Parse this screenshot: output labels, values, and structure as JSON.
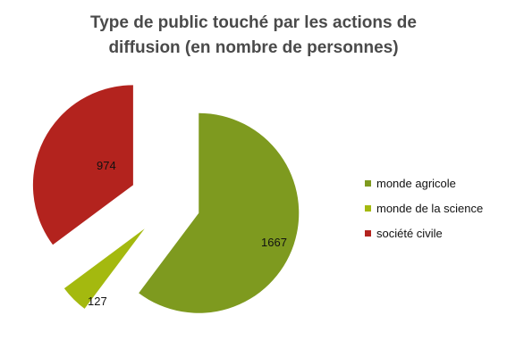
{
  "chart_data": {
    "type": "pie",
    "title": [
      "Type de public touché par les actions de",
      "diffusion (en nombre de personnes)"
    ],
    "exploded": true,
    "legend_position": "right",
    "categories": [
      "monde agricole",
      "monde de la science",
      "société civile"
    ],
    "values": [
      1667,
      127,
      974
    ],
    "data_labels": [
      "1667",
      "127",
      "974"
    ],
    "colors": [
      "#7E9A1F",
      "#A4B90F",
      "#B3231E"
    ]
  }
}
